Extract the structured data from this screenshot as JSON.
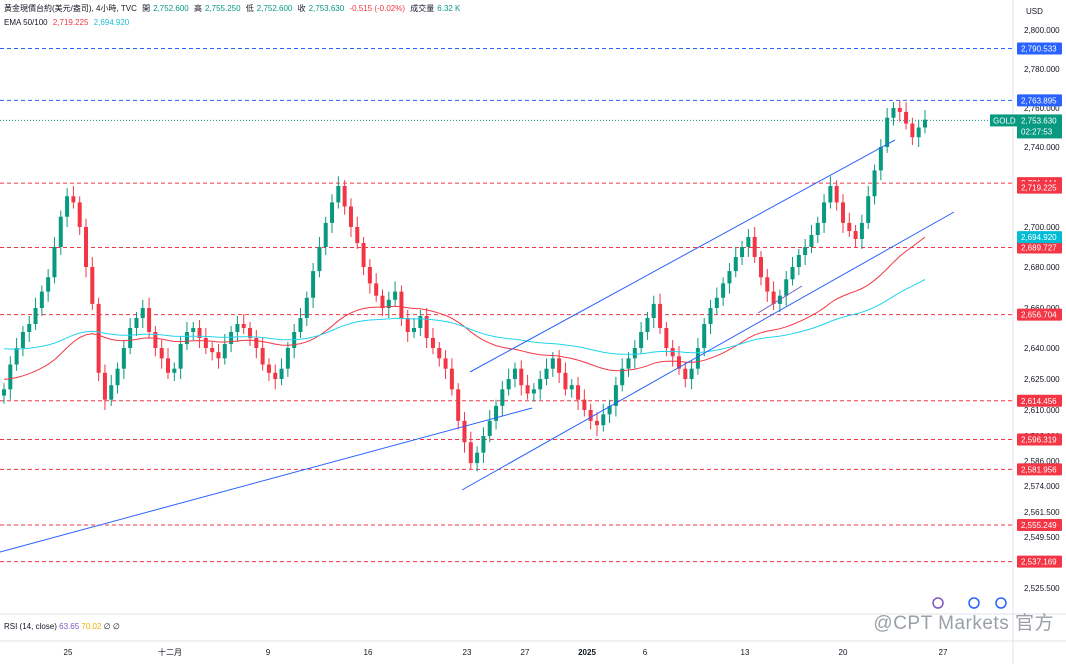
{
  "header": {
    "symbol_line": "黃金現價台約(美元/盎司), 4小時, TVC",
    "open_label": "開",
    "open": "2,752.600",
    "high_label": "高",
    "high": "2,755.250",
    "low_label": "低",
    "low": "2,752.600",
    "close_label": "收",
    "close": "2,753.630",
    "change": "-0.515 (-0.02%)",
    "volume_label": "成交量",
    "volume": "6.32 K",
    "ema_label": "EMA 50/100",
    "ema50": "2,719.225",
    "ema100": "2,694.920"
  },
  "currency": "USD",
  "rsi": {
    "label": "RSI (14, close)",
    "v1": "63.65",
    "v2": "70.02",
    "v3": "∅ ∅"
  },
  "watermark": "@CPT Markets 官方",
  "price_tag": {
    "symbol": "GOLD",
    "price": "2,753.630",
    "countdown": "02:27:53"
  },
  "colors": {
    "up": "#089981",
    "down": "#f23645",
    "blue_line": "#2962ff",
    "ema50": "#f23645",
    "ema100": "#22d3ee"
  },
  "chart_data": {
    "type": "candlestick",
    "title": "黃金現價台約(美元/盎司), 4小時, TVC",
    "y_axis_ticks": [
      "2,800.000",
      "2,780.000",
      "2,760.000",
      "2,740.000",
      "2,720.000",
      "2,700.000",
      "2,680.000",
      "2,660.000",
      "2,640.000",
      "2,625.000",
      "2,610.000",
      "2,598.000",
      "2,586.000",
      "2,574.000",
      "2,561.500",
      "2,549.500",
      "2,537.000",
      "2,525.500"
    ],
    "x_axis_ticks": [
      "25",
      "十二月",
      "9",
      "16",
      "23",
      "27",
      "2025",
      "6",
      "13",
      "20",
      "27"
    ],
    "horizontal_levels": [
      {
        "value": 2790.533,
        "label": "2,790.533",
        "color": "#2962ff",
        "style": "dashed"
      },
      {
        "value": 2763.895,
        "label": "2,763.895",
        "color": "#2962ff",
        "style": "dashed"
      },
      {
        "value": 2721.444,
        "label": "2,721.444",
        "color": "#f23645",
        "style": "dashed"
      },
      {
        "value": 2689.727,
        "label": "2,689.727",
        "color": "#f23645",
        "style": "dashed"
      },
      {
        "value": 2656.704,
        "label": "2,656.704",
        "color": "#f23645",
        "style": "dashed"
      },
      {
        "value": 2614.456,
        "label": "2,614.456",
        "color": "#f23645",
        "style": "dashed"
      },
      {
        "value": 2596.319,
        "label": "2,596.319",
        "color": "#f23645",
        "style": "dashed"
      },
      {
        "value": 2581.956,
        "label": "2,581.956",
        "color": "#f23645",
        "style": "dashed"
      },
      {
        "value": 2555.249,
        "label": "2,555.249",
        "color": "#f23645",
        "style": "dashed"
      },
      {
        "value": 2537.169,
        "label": "2,537.169",
        "color": "#f23645",
        "style": "dashed"
      }
    ],
    "indicator_tags": [
      {
        "label": "2,719.225",
        "color": "#f23645"
      },
      {
        "label": "2,694.920",
        "color": "#00bcd4"
      }
    ],
    "last_price": 2753.63,
    "close_series": [
      2620,
      2632,
      2640,
      2648,
      2652,
      2660,
      2668,
      2675,
      2690,
      2705,
      2715,
      2712,
      2700,
      2680,
      2662,
      2628,
      2615,
      2622,
      2630,
      2640,
      2650,
      2655,
      2660,
      2648,
      2640,
      2635,
      2628,
      2630,
      2642,
      2648,
      2650,
      2645,
      2640,
      2638,
      2635,
      2642,
      2648,
      2652,
      2650,
      2645,
      2640,
      2632,
      2628,
      2625,
      2630,
      2640,
      2648,
      2655,
      2665,
      2678,
      2690,
      2702,
      2712,
      2720,
      2710,
      2700,
      2692,
      2680,
      2672,
      2666,
      2660,
      2664,
      2668,
      2655,
      2648,
      2650,
      2656,
      2645,
      2640,
      2635,
      2630,
      2620,
      2605,
      2595,
      2585,
      2590,
      2598,
      2605,
      2612,
      2620,
      2625,
      2630,
      2622,
      2618,
      2620,
      2625,
      2630,
      2635,
      2628,
      2620,
      2622,
      2615,
      2610,
      2605,
      2603,
      2608,
      2612,
      2622,
      2630,
      2635,
      2640,
      2648,
      2655,
      2662,
      2650,
      2640,
      2636,
      2630,
      2625,
      2630,
      2640,
      2652,
      2660,
      2665,
      2672,
      2678,
      2685,
      2690,
      2695,
      2685,
      2675,
      2668,
      2662,
      2666,
      2674,
      2680,
      2686,
      2690,
      2696,
      2702,
      2712,
      2720,
      2712,
      2702,
      2698,
      2694,
      2702,
      2715,
      2728,
      2740,
      2755,
      2760,
      2758,
      2752,
      2745,
      2750,
      2754
    ]
  }
}
